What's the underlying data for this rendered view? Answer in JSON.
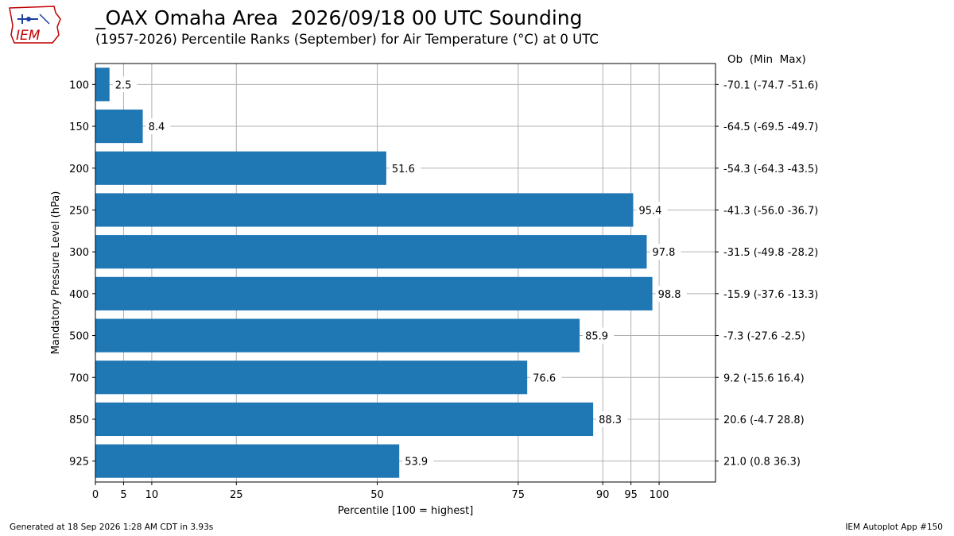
{
  "header": {
    "title": "_OAX Omaha Area  2026/09/18 00 UTC Sounding",
    "subtitle": "(1957-2026) Percentile Ranks (September) for Air Temperature (°C) at 0 UTC",
    "ob_header": "Ob  (Min  Max)"
  },
  "logo": {
    "text": "IEM",
    "color": "#c00000"
  },
  "footer": {
    "generated": "Generated at 18 Sep 2026 1:28 AM CDT in 3.93s",
    "app": "IEM Autoplot App #150"
  },
  "chart_data": {
    "type": "bar",
    "orientation": "horizontal",
    "title": "_OAX Omaha Area  2026/09/18 00 UTC Sounding",
    "subtitle": "(1957-2026) Percentile Ranks (September) for Air Temperature (°C) at 0 UTC",
    "xlabel": "Percentile [100 = highest]",
    "ylabel": "Mandatory Pressure Level (hPa)",
    "xlim": [
      0,
      110
    ],
    "xticks": [
      0,
      5,
      10,
      25,
      50,
      75,
      90,
      95,
      100
    ],
    "grid": true,
    "bar_color": "#1f77b4",
    "categories": [
      "100",
      "150",
      "200",
      "250",
      "300",
      "400",
      "500",
      "700",
      "850",
      "925"
    ],
    "values": [
      2.5,
      8.4,
      51.6,
      95.4,
      97.8,
      98.8,
      85.9,
      76.6,
      88.3,
      53.9
    ],
    "value_labels": [
      "2.5",
      "8.4",
      "51.6",
      "95.4",
      "97.8",
      "98.8",
      "85.9",
      "76.6",
      "88.3",
      "53.9"
    ],
    "right_labels": [
      "-70.1 (-74.7 -51.6)",
      "-64.5 (-69.5 -49.7)",
      "-54.3 (-64.3 -43.5)",
      "-41.3 (-56.0 -36.7)",
      "-31.5 (-49.8 -28.2)",
      "-15.9 (-37.6 -13.3)",
      "-7.3 (-27.6 -2.5)",
      "9.2 (-15.6 16.4)",
      "20.6 (-4.7 28.8)",
      "21.0 (0.8 36.3)"
    ]
  }
}
